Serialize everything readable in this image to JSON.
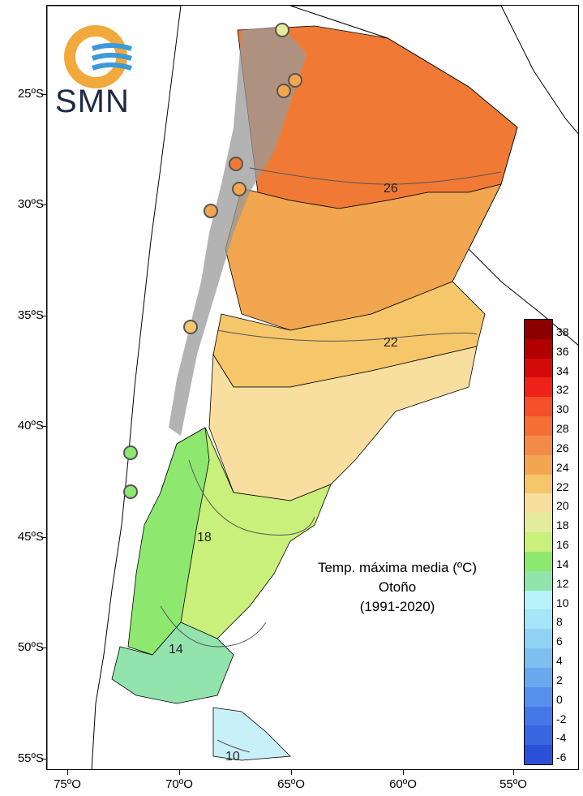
{
  "logo": {
    "text": "SMN",
    "colors": {
      "ring": "#f2a93b",
      "waves": "#3b9ad9",
      "text": "#1f2a44"
    }
  },
  "title": {
    "line1": "Temp. máxima media (ºC)",
    "line2": "Otoño",
    "line3": "(1991-2020)"
  },
  "axes": {
    "lat_labels": [
      "25ºS",
      "30ºS",
      "35ºS",
      "40ºS",
      "45ºS",
      "50ºS",
      "55ºS"
    ],
    "lon_labels": [
      "75ºO",
      "70ºO",
      "65ºO",
      "60ºO",
      "55ºO"
    ]
  },
  "contour_labels": [
    "26",
    "22",
    "18",
    "14",
    "10"
  ],
  "legend": {
    "labels": [
      "38",
      "36",
      "34",
      "32",
      "30",
      "28",
      "26",
      "24",
      "22",
      "20",
      "18",
      "16",
      "14",
      "12",
      "10",
      "8",
      "6",
      "4",
      "2",
      "0",
      "-2",
      "-4",
      "-6"
    ],
    "colors": [
      "#8b0000",
      "#b00000",
      "#d40a0a",
      "#f0201a",
      "#f4502a",
      "#f56f35",
      "#f28b4a",
      "#f2a650",
      "#f6c66a",
      "#f8dfa0",
      "#e4eb9a",
      "#c8f07a",
      "#8ee870",
      "#93e3ac",
      "#b8f2f8",
      "#a6e4f8",
      "#90d2f4",
      "#7fbef0",
      "#6aa8ee",
      "#5690ec",
      "#4578e6",
      "#3766e0",
      "#2a50d8"
    ]
  },
  "colors": {
    "hot": "#f07a35",
    "warm": "#f2a650",
    "mild": "#f6c66a",
    "cool": "#f8dfa0",
    "green": "#c8f07a",
    "deep_green": "#8ee870",
    "teal": "#93e3ac",
    "ice": "#c8f0f8",
    "mountain": "#9a9a9a"
  }
}
